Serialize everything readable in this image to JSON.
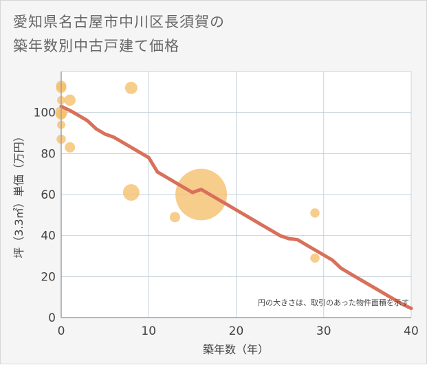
{
  "chart_data": {
    "type": "scatter",
    "title_lines": [
      "愛知県名古屋市中川区長須賀の",
      "築年数別中古戸建て価格"
    ],
    "xlabel": "築年数（年）",
    "ylabel": "坪（3.3㎡）単価（万円）",
    "xlim": [
      0,
      40
    ],
    "ylim": [
      0,
      120
    ],
    "xticks": [
      0,
      10,
      20,
      30,
      40
    ],
    "yticks": [
      0,
      20,
      40,
      60,
      80,
      100
    ],
    "grid": true,
    "note": "円の大きさは、取引のあった物件面積を示す",
    "points": [
      {
        "x": 0,
        "y": 113,
        "size": 1
      },
      {
        "x": 0,
        "y": 112,
        "size": 1
      },
      {
        "x": 0,
        "y": 106,
        "size": 0.8
      },
      {
        "x": 0,
        "y": 100,
        "size": 1.2
      },
      {
        "x": 0,
        "y": 99,
        "size": 1
      },
      {
        "x": 0,
        "y": 94,
        "size": 0.8
      },
      {
        "x": 0,
        "y": 87,
        "size": 0.9
      },
      {
        "x": 1,
        "y": 106,
        "size": 1.1
      },
      {
        "x": 1,
        "y": 83,
        "size": 1
      },
      {
        "x": 8,
        "y": 112,
        "size": 1.2
      },
      {
        "x": 8,
        "y": 61,
        "size": 1.6
      },
      {
        "x": 13,
        "y": 49,
        "size": 1
      },
      {
        "x": 16,
        "y": 60,
        "size": 5
      },
      {
        "x": 29,
        "y": 51,
        "size": 0.9
      },
      {
        "x": 29,
        "y": 29,
        "size": 0.9
      }
    ],
    "trend": {
      "x": [
        0,
        1,
        2,
        3,
        4,
        5,
        6,
        7,
        8,
        9,
        10,
        11,
        12,
        13,
        14,
        15,
        16,
        17,
        18,
        19,
        20,
        21,
        22,
        23,
        24,
        25,
        26,
        27,
        28,
        29,
        30,
        31,
        32,
        33,
        34,
        35,
        36,
        37,
        38,
        39,
        40
      ],
      "y": [
        103,
        101,
        98.5,
        96,
        92,
        89.5,
        88,
        85.5,
        83,
        80.5,
        78,
        71,
        68.5,
        66,
        63.5,
        61,
        62.5,
        60,
        57.5,
        55,
        52.5,
        50,
        47.5,
        45,
        42.5,
        40,
        38.5,
        38,
        35.5,
        33,
        30.5,
        28,
        24,
        21.5,
        19,
        16.5,
        14,
        11.5,
        9,
        6.5,
        4.5
      ]
    },
    "colors": {
      "point": "#f5bf6c",
      "trend": "#d9705a",
      "grid": "#c6d3dc",
      "axis": "#9aa2a8"
    }
  }
}
